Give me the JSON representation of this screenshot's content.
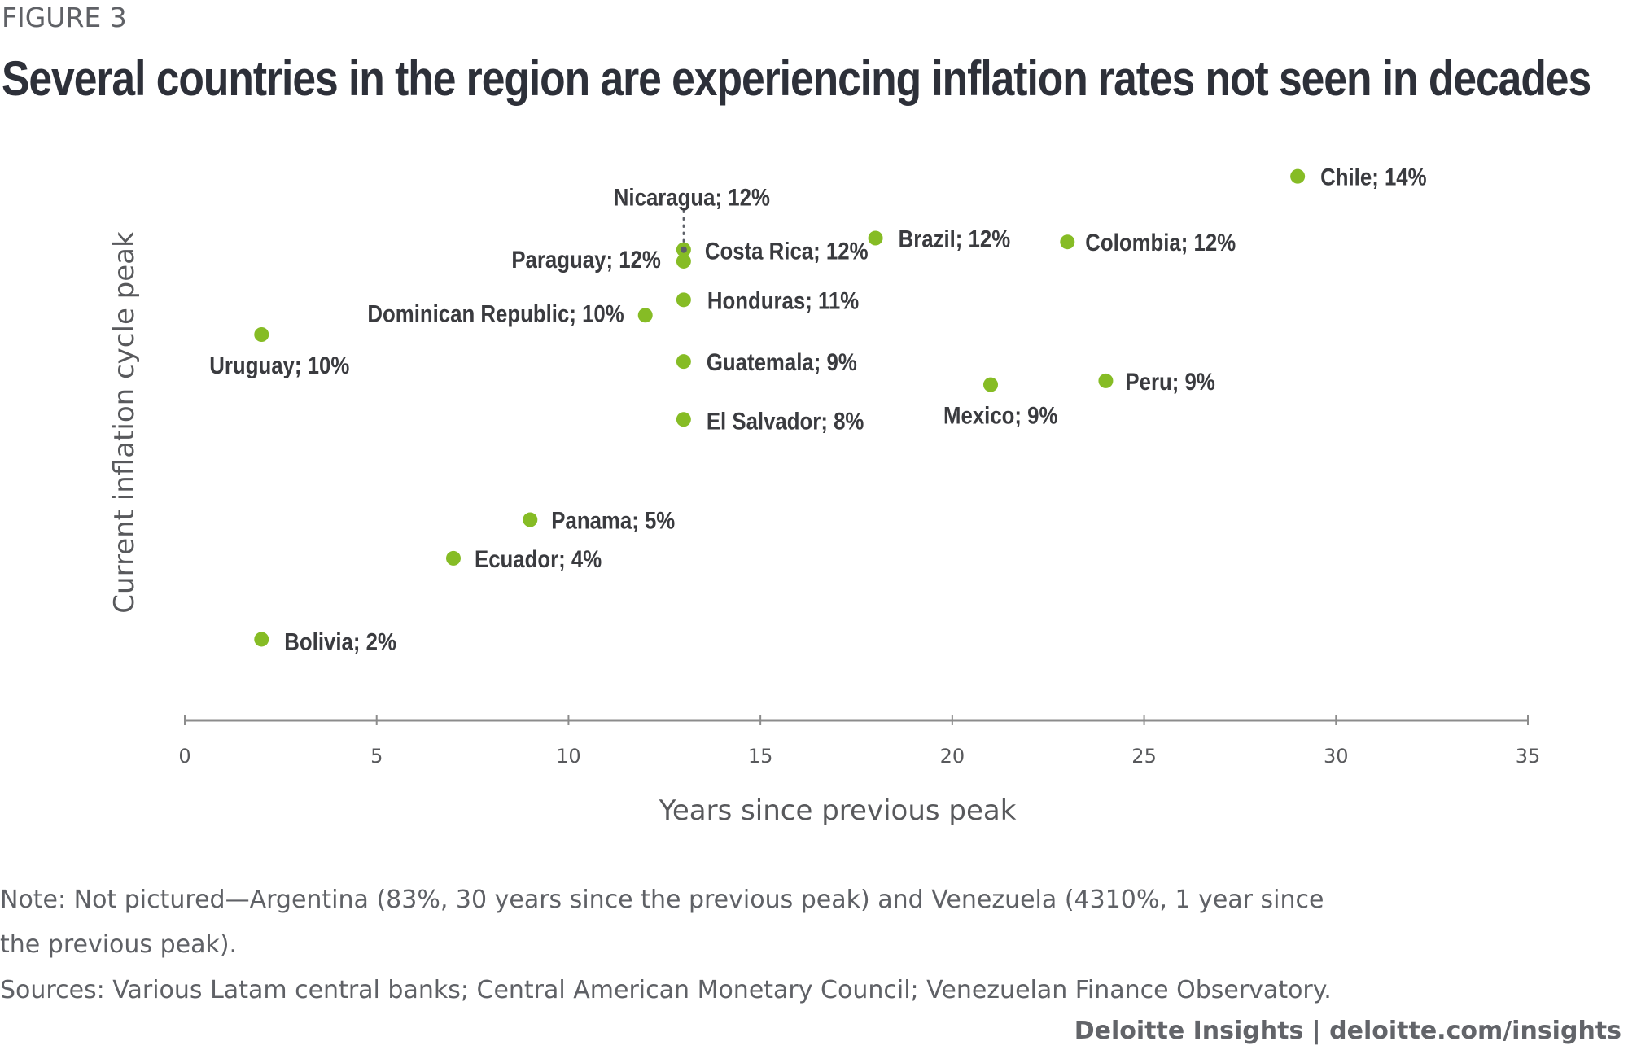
{
  "figure_label": "FIGURE 3",
  "title": "Several countries in the region are experiencing inflation rates not seen in decades",
  "note_line1": "Note: Not pictured—Argentina (83%, 30 years since the previous peak) and Venezuela (4310%, 1 year since",
  "note_line2": "the previous peak).",
  "sources": "Sources: Various Latam central banks; Central American Monetary Council; Venezuelan Finance Observatory.",
  "footer": "Deloitte Insights | deloitte.com/insights",
  "colors": {
    "point": "#86bc25",
    "leader_marker": "#5c6068",
    "text": "#3a3b3f",
    "axis": "#8c8c8c"
  },
  "chart_data": {
    "type": "scatter",
    "title": "Several countries in the region are experiencing inflation rates not seen in decades",
    "xlabel": "Years since previous peak",
    "ylabel": "Current inflation cycle peak",
    "xlim": [
      0,
      35
    ],
    "ylim": [
      0,
      14.5
    ],
    "x_ticks": [
      0,
      5,
      10,
      15,
      20,
      25,
      30,
      35
    ],
    "y_ticks": [],
    "grid": false,
    "legend": "none",
    "unit_y": "%",
    "points": [
      {
        "country": "Chile",
        "label": "Chile; 14%",
        "x": 29,
        "y": 14.1
      },
      {
        "country": "Nicaragua",
        "label": "Nicaragua; 12%",
        "x": 13,
        "y": 12.2
      },
      {
        "country": "Costa Rica",
        "label": "Costa Rica; 12%",
        "x": 13,
        "y": 12.2
      },
      {
        "country": "Paraguay",
        "label": "Paraguay; 12%",
        "x": 13,
        "y": 11.9
      },
      {
        "country": "Brazil",
        "label": "Brazil; 12%",
        "x": 18,
        "y": 12.5
      },
      {
        "country": "Colombia",
        "label": "Colombia; 12%",
        "x": 23,
        "y": 12.4
      },
      {
        "country": "Honduras",
        "label": "Honduras; 11%",
        "x": 13,
        "y": 10.9
      },
      {
        "country": "Dominican Republic",
        "label": "Dominican Republic; 10%",
        "x": 12,
        "y": 10.5
      },
      {
        "country": "Uruguay",
        "label": "Uruguay; 10%",
        "x": 2,
        "y": 10.0
      },
      {
        "country": "Guatemala",
        "label": "Guatemala; 9%",
        "x": 13,
        "y": 9.3
      },
      {
        "country": "Peru",
        "label": "Peru; 9%",
        "x": 24,
        "y": 8.8
      },
      {
        "country": "Mexico",
        "label": "Mexico; 9%",
        "x": 21,
        "y": 8.7
      },
      {
        "country": "El Salvador",
        "label": "El Salvador; 8%",
        "x": 13,
        "y": 7.8
      },
      {
        "country": "Panama",
        "label": "Panama; 5%",
        "x": 9,
        "y": 5.2
      },
      {
        "country": "Ecuador",
        "label": "Ecuador; 4%",
        "x": 7,
        "y": 4.2
      },
      {
        "country": "Bolivia",
        "label": "Bolivia; 2%",
        "x": 2,
        "y": 2.1
      }
    ],
    "not_pictured": [
      {
        "country": "Argentina",
        "y": 83,
        "x": 30
      },
      {
        "country": "Venezuela",
        "y": 4310,
        "x": 1
      }
    ]
  }
}
